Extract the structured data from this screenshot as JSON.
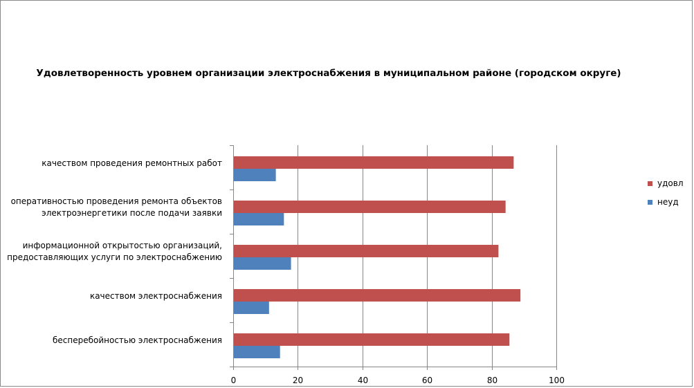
{
  "chart_data": {
    "type": "bar",
    "orientation": "horizontal",
    "title": "Удовлетворенность уровнем организации электроснабжения в муниципальном районе (городском округе)",
    "categories": [
      "качеством  проведения  ремонтных  работ",
      "оперативностью  проведения  ремонта  объектов электроэнергетики  после подачи заявки",
      "информационной  открытостью  организаций, предоставляющих  услуги по электроснабжению",
      "качеством  электроснабжения",
      "бесперебойностью  электроснабжения"
    ],
    "category_lines": [
      [
        "качеством  проведения  ремонтных  работ"
      ],
      [
        "оперативностью  проведения  ремонта  объектов",
        "электроэнергетики  после подачи заявки"
      ],
      [
        "информационной  открытостью  организаций,",
        "предоставляющих  услуги по электроснабжению"
      ],
      [
        "качеством  электроснабжения"
      ],
      [
        "бесперебойностью  электроснабжения"
      ]
    ],
    "series": [
      {
        "name": "удовл",
        "color": "#c0504d",
        "values": [
          86.8,
          84.3,
          82.1,
          88.9,
          85.5
        ]
      },
      {
        "name": "неуд",
        "color": "#4f81bd",
        "values": [
          13.2,
          15.7,
          17.9,
          11.1,
          14.5
        ]
      }
    ],
    "xlim": [
      0,
      100
    ],
    "xticks": [
      0,
      20,
      40,
      60,
      80,
      100
    ],
    "grid": true,
    "legend": "right"
  }
}
